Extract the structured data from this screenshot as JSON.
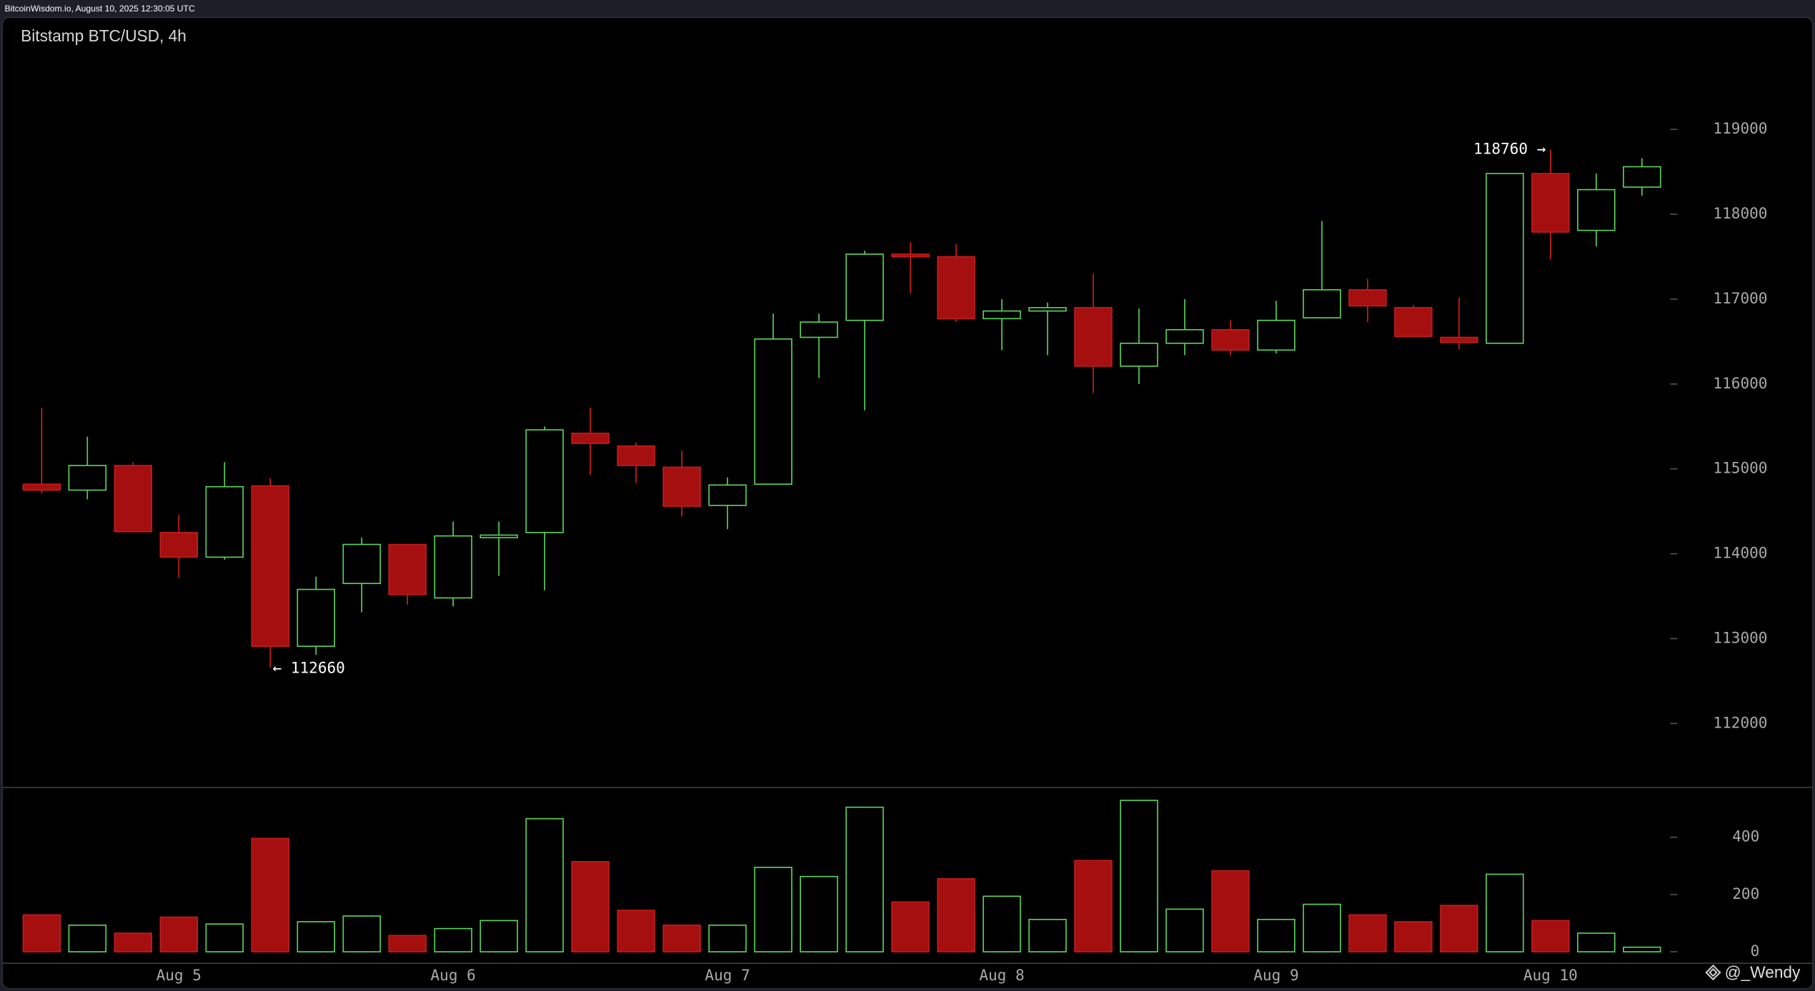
{
  "header": "BitcoinWisdom.io, August 10, 2025 12:30:05 UTC",
  "watermark": "@_Wendy",
  "chart_data": {
    "type": "candlestick",
    "title": "Bitstamp BTC/USD, 4h",
    "categories": [
      null,
      null,
      null,
      "Aug 5",
      null,
      null,
      null,
      null,
      null,
      "Aug 6",
      null,
      null,
      null,
      null,
      null,
      "Aug 7",
      null,
      null,
      null,
      null,
      null,
      "Aug 8",
      null,
      null,
      null,
      null,
      null,
      "Aug 9",
      null,
      null,
      null,
      null,
      null,
      "Aug 10",
      null,
      null
    ],
    "open": [
      114820,
      114750,
      115040,
      114250,
      113960,
      114800,
      112910,
      113650,
      114110,
      113480,
      114190,
      114250,
      115420,
      115270,
      115020,
      114570,
      114820,
      116550,
      116750,
      117530,
      117500,
      116770,
      116860,
      116900,
      116210,
      116480,
      116640,
      116400,
      116780,
      117110,
      116900,
      116550,
      116480,
      118480,
      117810,
      118320
    ],
    "high": [
      115720,
      115380,
      115080,
      114460,
      115080,
      114890,
      113730,
      114190,
      114110,
      114380,
      114380,
      115500,
      115720,
      115310,
      115210,
      114900,
      116830,
      116830,
      117570,
      117670,
      117650,
      117000,
      116960,
      117300,
      116890,
      117000,
      116750,
      116980,
      117920,
      117240,
      116930,
      117020,
      118480,
      118760,
      118480,
      118660
    ],
    "low": [
      114710,
      114640,
      114260,
      113720,
      113930,
      112660,
      112810,
      113310,
      113400,
      113380,
      113740,
      113570,
      114930,
      114830,
      114440,
      114290,
      114820,
      116070,
      115690,
      117070,
      116730,
      116400,
      116340,
      115890,
      116000,
      116340,
      116340,
      116360,
      116770,
      116730,
      116560,
      116410,
      116480,
      117470,
      117620,
      118220
    ],
    "close": [
      114750,
      115040,
      114260,
      113960,
      114790,
      112910,
      113580,
      114110,
      113520,
      114210,
      114220,
      115460,
      115300,
      115040,
      114560,
      114810,
      116530,
      116730,
      117530,
      117500,
      116770,
      116860,
      116900,
      116210,
      116480,
      116640,
      116400,
      116750,
      117110,
      116920,
      116560,
      116490,
      118480,
      117790,
      118290,
      118560
    ],
    "volume": [
      129,
      93,
      65,
      121,
      97,
      396,
      105,
      125,
      57,
      81,
      109,
      465,
      315,
      145,
      93,
      93,
      295,
      263,
      505,
      174,
      255,
      194,
      113,
      319,
      529,
      149,
      283,
      113,
      166,
      129,
      105,
      162,
      271,
      109,
      65,
      16
    ],
    "up_color": "#5cd65c",
    "down_color": "#a50f0f",
    "ylim": [
      111260,
      120320
    ],
    "yticks": [
      112000,
      113000,
      114000,
      115000,
      116000,
      117000,
      118000,
      119000
    ],
    "volume_ylim": [
      -36,
      574
    ],
    "volume_ticks": [
      0,
      200,
      400
    ],
    "annotations": [
      {
        "label": "118760 →",
        "value": 118760
      },
      {
        "label": "← 112660",
        "value": 112660
      }
    ]
  }
}
